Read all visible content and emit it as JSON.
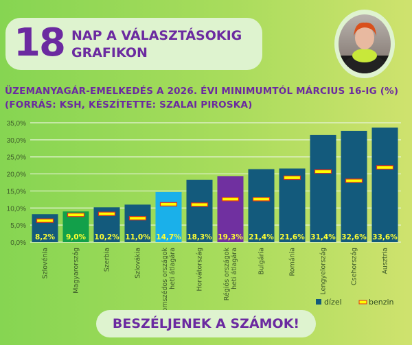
{
  "header": {
    "days": "18",
    "line1": "NAP A VÁLASZTÁSOKIG",
    "line2": "GRAFIKON"
  },
  "subtitle": {
    "line1": "ÜZEMANYAGÁR-EMELKEDÉS A 2026. ÉVI MINIMUMTÓL MÁRCIUS 16-IG (%)",
    "line2": "(FORRÁS: KSH, KÉSZÍTETTE: SZALAI PIROSKA)"
  },
  "banner": "BESZÉLJENEK A SZÁMOK!",
  "chart_data": {
    "type": "bar",
    "title": "ÜZEMANYAGÁR-EMELKEDÉS A 2026. ÉVI MINIMUMTÓL MÁRCIUS 16-IG (%)",
    "categories": [
      "Szlovénia",
      "Magyarország",
      "Szerbia",
      "Szlovákia",
      "Szomszédos országok heti átlagára",
      "Horvátország",
      "Régiós országok heti átlagára",
      "Bulgária",
      "Románia",
      "Lengyelország",
      "Csehország",
      "Ausztria"
    ],
    "series": [
      {
        "name": "dízel",
        "type": "bar",
        "values": [
          8.2,
          9.0,
          10.2,
          11.0,
          14.7,
          18.3,
          19.3,
          21.4,
          21.6,
          31.4,
          32.6,
          33.6
        ],
        "labels": [
          "8,2%",
          "9,0%",
          "10,2%",
          "11,0%",
          "14,7%",
          "18,3%",
          "19,3%",
          "21,4%",
          "21,6%",
          "31,4%",
          "32,6%",
          "33,6%"
        ]
      },
      {
        "name": "benzin",
        "type": "marker",
        "values": [
          6.3,
          8.0,
          8.3,
          7.0,
          11.1,
          11.0,
          12.6,
          12.6,
          18.9,
          20.7,
          18.0,
          21.9
        ]
      }
    ],
    "colors": {
      "default": "#135a7c",
      "Magyarország": "#12a04a",
      "Szomszédos országok heti átlagára": "#1ab0ea",
      "Régiós országok heti átlagára": "#7030a0",
      "benzin_fill": "#ffff00",
      "benzin_stroke": "#e0301e",
      "label": "#ffff33"
    },
    "ylim": [
      0,
      35
    ],
    "yticks": [
      "0,0%",
      "5,0%",
      "10,0%",
      "15,0%",
      "20,0%",
      "25,0%",
      "30,0%",
      "35,0%"
    ],
    "grid": true,
    "legend": "bottom-right"
  }
}
